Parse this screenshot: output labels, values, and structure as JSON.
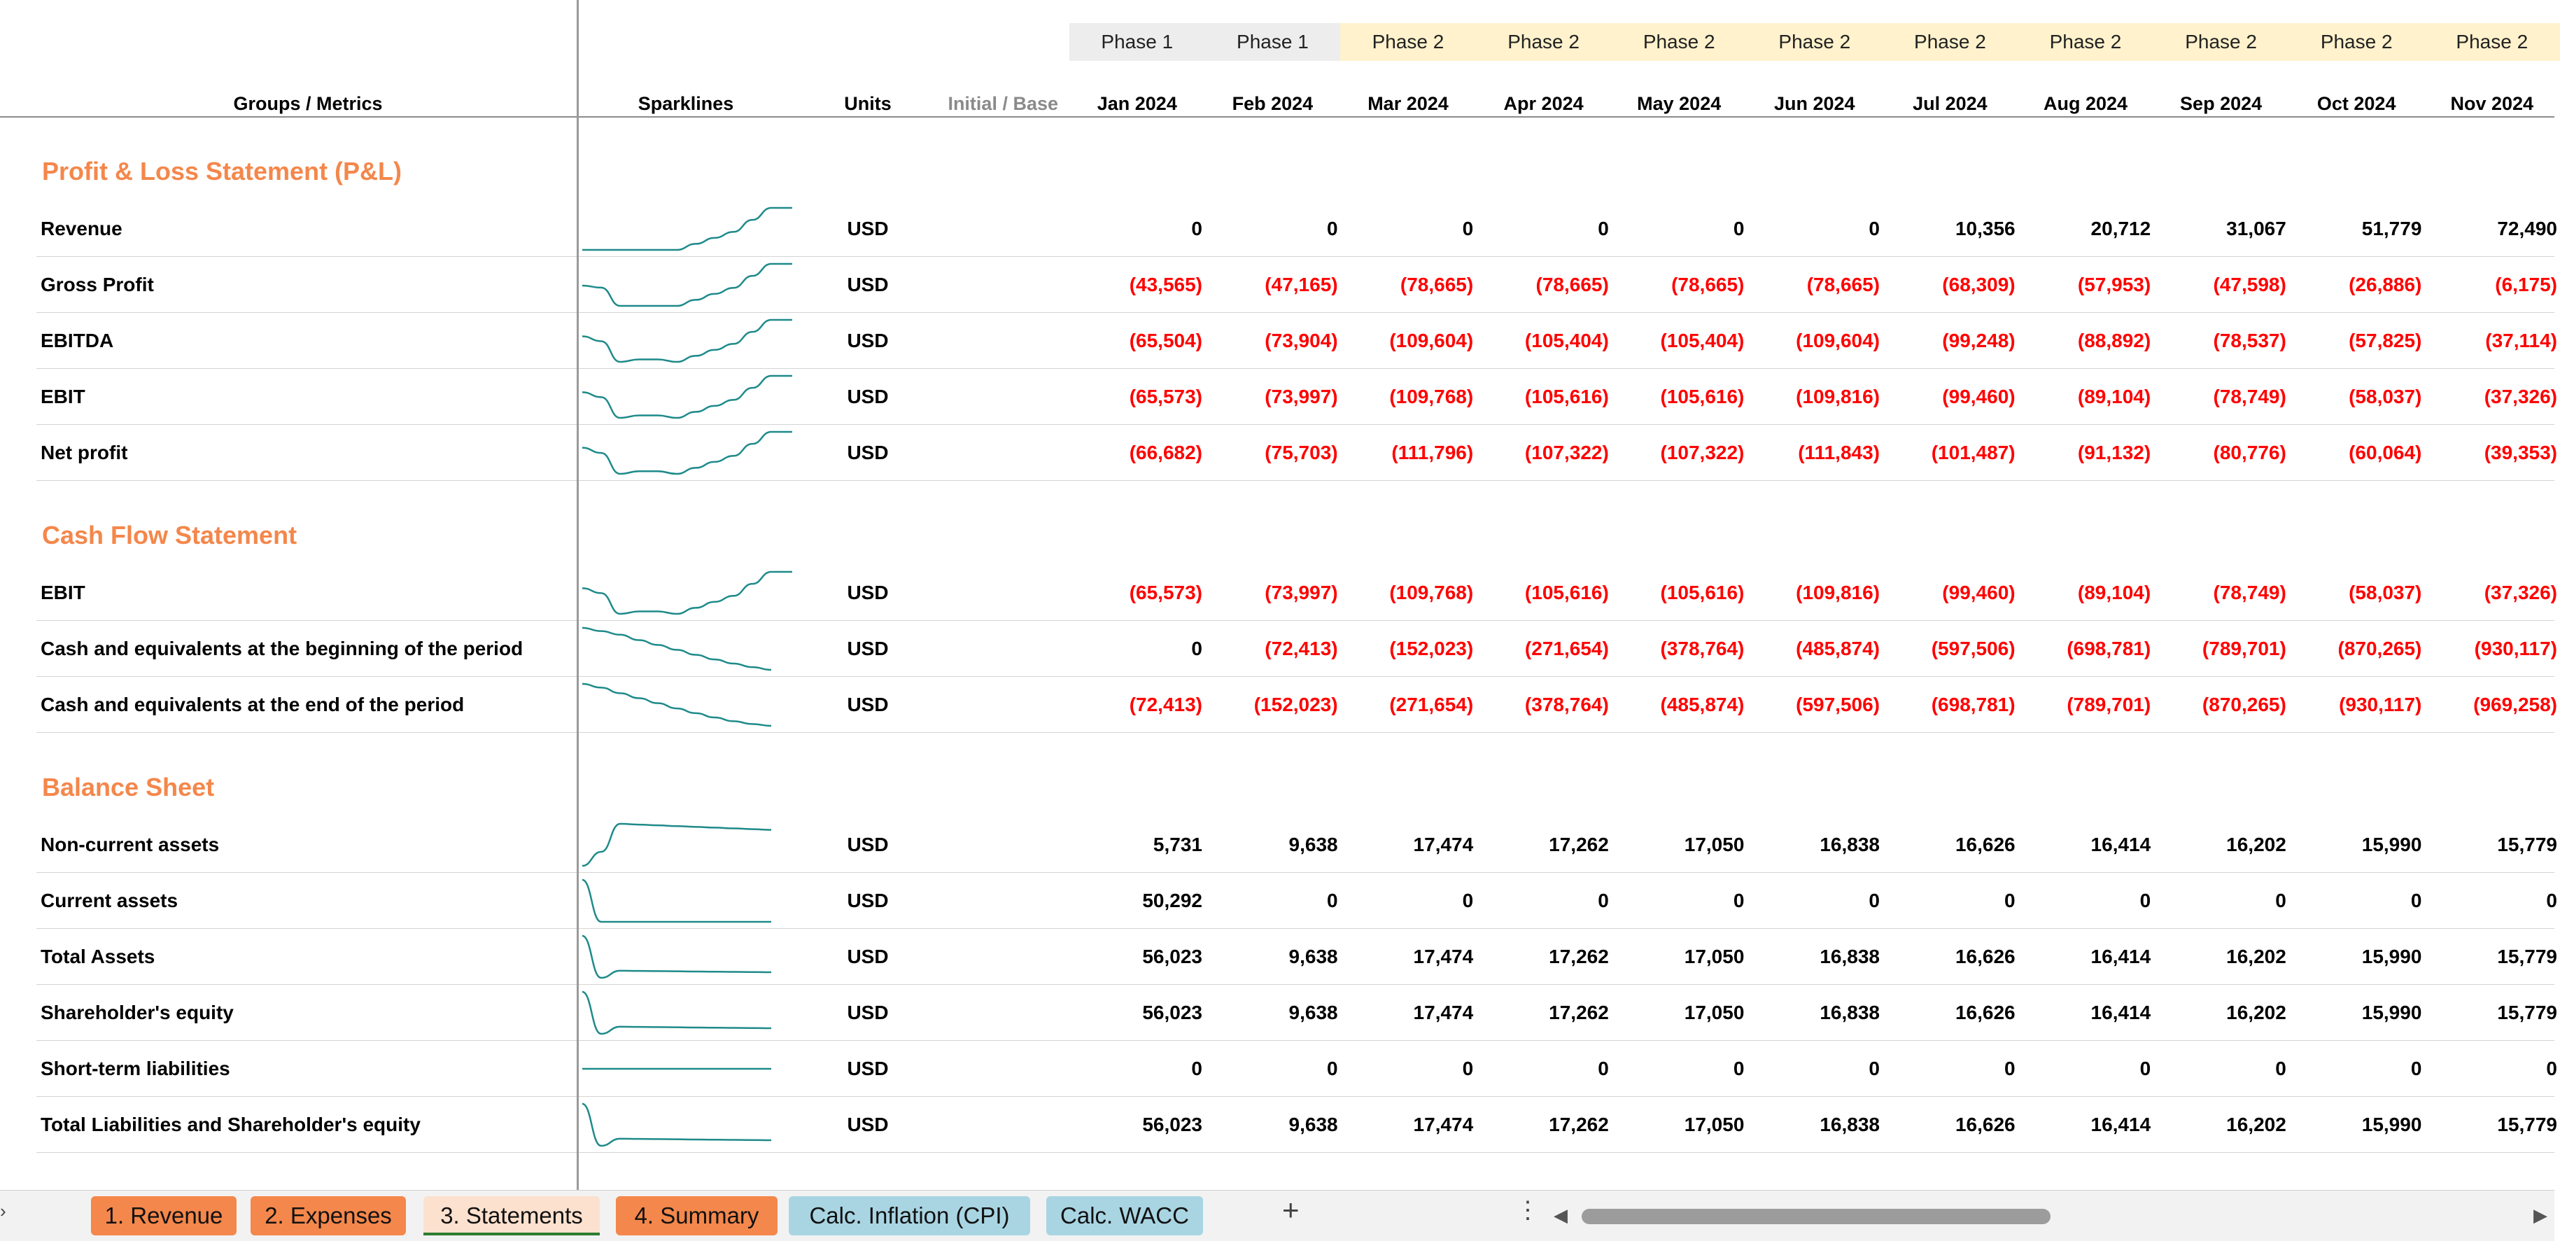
{
  "headers": {
    "groups_metrics": "Groups / Metrics",
    "sparklines": "Sparklines",
    "units": "Units",
    "initial_base": "Initial / Base"
  },
  "columns": [
    {
      "phase": "Phase 1",
      "month": "Jan 2024"
    },
    {
      "phase": "Phase 1",
      "month": "Feb 2024"
    },
    {
      "phase": "Phase 2",
      "month": "Mar 2024"
    },
    {
      "phase": "Phase 2",
      "month": "Apr 2024"
    },
    {
      "phase": "Phase 2",
      "month": "May 2024"
    },
    {
      "phase": "Phase 2",
      "month": "Jun 2024"
    },
    {
      "phase": "Phase 2",
      "month": "Jul 2024"
    },
    {
      "phase": "Phase 2",
      "month": "Aug 2024"
    },
    {
      "phase": "Phase 2",
      "month": "Sep 2024"
    },
    {
      "phase": "Phase 2",
      "month": "Oct 2024"
    },
    {
      "phase": "Phase 2",
      "month": "Nov 2024"
    }
  ],
  "colors": {
    "accent": "#f4874b",
    "negative": "#ff0000",
    "sparkline": "#1f8a8a",
    "phase1": "#ededed",
    "phase2": "#fff2cc"
  },
  "sections": [
    {
      "title": "Profit & Loss Statement (P&L)",
      "rows": [
        {
          "name": "Revenue",
          "unit": "USD",
          "values": [
            "0",
            "0",
            "0",
            "0",
            "0",
            "0",
            "10,356",
            "20,712",
            "31,067",
            "51,779",
            "72,490"
          ]
        },
        {
          "name": "Gross Profit",
          "unit": "USD",
          "values": [
            "(43,565)",
            "(47,165)",
            "(78,665)",
            "(78,665)",
            "(78,665)",
            "(78,665)",
            "(68,309)",
            "(57,953)",
            "(47,598)",
            "(26,886)",
            "(6,175)"
          ]
        },
        {
          "name": "EBITDA",
          "unit": "USD",
          "values": [
            "(65,504)",
            "(73,904)",
            "(109,604)",
            "(105,404)",
            "(105,404)",
            "(109,604)",
            "(99,248)",
            "(88,892)",
            "(78,537)",
            "(57,825)",
            "(37,114)"
          ]
        },
        {
          "name": "EBIT",
          "unit": "USD",
          "values": [
            "(65,573)",
            "(73,997)",
            "(109,768)",
            "(105,616)",
            "(105,616)",
            "(109,816)",
            "(99,460)",
            "(89,104)",
            "(78,749)",
            "(58,037)",
            "(37,326)"
          ]
        },
        {
          "name": "Net profit",
          "unit": "USD",
          "values": [
            "(66,682)",
            "(75,703)",
            "(111,796)",
            "(107,322)",
            "(107,322)",
            "(111,843)",
            "(101,487)",
            "(91,132)",
            "(80,776)",
            "(60,064)",
            "(39,353)"
          ]
        }
      ]
    },
    {
      "title": "Cash Flow Statement",
      "rows": [
        {
          "name": "EBIT",
          "unit": "USD",
          "values": [
            "(65,573)",
            "(73,997)",
            "(109,768)",
            "(105,616)",
            "(105,616)",
            "(109,816)",
            "(99,460)",
            "(89,104)",
            "(78,749)",
            "(58,037)",
            "(37,326)"
          ]
        },
        {
          "name": "Cash and equivalents at the beginning of the period",
          "unit": "USD",
          "values": [
            "0",
            "(72,413)",
            "(152,023)",
            "(271,654)",
            "(378,764)",
            "(485,874)",
            "(597,506)",
            "(698,781)",
            "(789,701)",
            "(870,265)",
            "(930,117)"
          ]
        },
        {
          "name": "Cash and equivalents at the end of the period",
          "unit": "USD",
          "values": [
            "(72,413)",
            "(152,023)",
            "(271,654)",
            "(378,764)",
            "(485,874)",
            "(597,506)",
            "(698,781)",
            "(789,701)",
            "(870,265)",
            "(930,117)",
            "(969,258)"
          ]
        }
      ]
    },
    {
      "title": "Balance Sheet",
      "rows": [
        {
          "name": "Non-current assets",
          "unit": "USD",
          "values": [
            "5,731",
            "9,638",
            "17,474",
            "17,262",
            "17,050",
            "16,838",
            "16,626",
            "16,414",
            "16,202",
            "15,990",
            "15,779"
          ]
        },
        {
          "name": "Current assets",
          "unit": "USD",
          "values": [
            "50,292",
            "0",
            "0",
            "0",
            "0",
            "0",
            "0",
            "0",
            "0",
            "0",
            "0"
          ]
        },
        {
          "name": "Total Assets",
          "unit": "USD",
          "values": [
            "56,023",
            "9,638",
            "17,474",
            "17,262",
            "17,050",
            "16,838",
            "16,626",
            "16,414",
            "16,202",
            "15,990",
            "15,779"
          ]
        },
        {
          "name": "Shareholder's equity",
          "unit": "USD",
          "values": [
            "56,023",
            "9,638",
            "17,474",
            "17,262",
            "17,050",
            "16,838",
            "16,626",
            "16,414",
            "16,202",
            "15,990",
            "15,779"
          ]
        },
        {
          "name": "Short-term liabilities",
          "unit": "USD",
          "values": [
            "0",
            "0",
            "0",
            "0",
            "0",
            "0",
            "0",
            "0",
            "0",
            "0",
            "0"
          ]
        },
        {
          "name": "Total Liabilities and Shareholder's equity",
          "unit": "USD",
          "values": [
            "56,023",
            "9,638",
            "17,474",
            "17,262",
            "17,050",
            "16,838",
            "16,626",
            "16,414",
            "16,202",
            "15,990",
            "15,779"
          ]
        }
      ]
    }
  ],
  "tabs": [
    {
      "label": "1. Revenue",
      "style": "orange"
    },
    {
      "label": "2. Expenses",
      "style": "orange"
    },
    {
      "label": "3. Statements",
      "style": "active"
    },
    {
      "label": "4. Summary",
      "style": "orange"
    },
    {
      "label": "Calc. Inflation (CPI)",
      "style": "blue"
    },
    {
      "label": "Calc. WACC",
      "style": "blue"
    }
  ],
  "tab_icons": {
    "add": "plus-icon",
    "more": "vertical-dots-icon",
    "scroll_left": "triangle-left-icon",
    "scroll_right": "triangle-right-icon"
  }
}
